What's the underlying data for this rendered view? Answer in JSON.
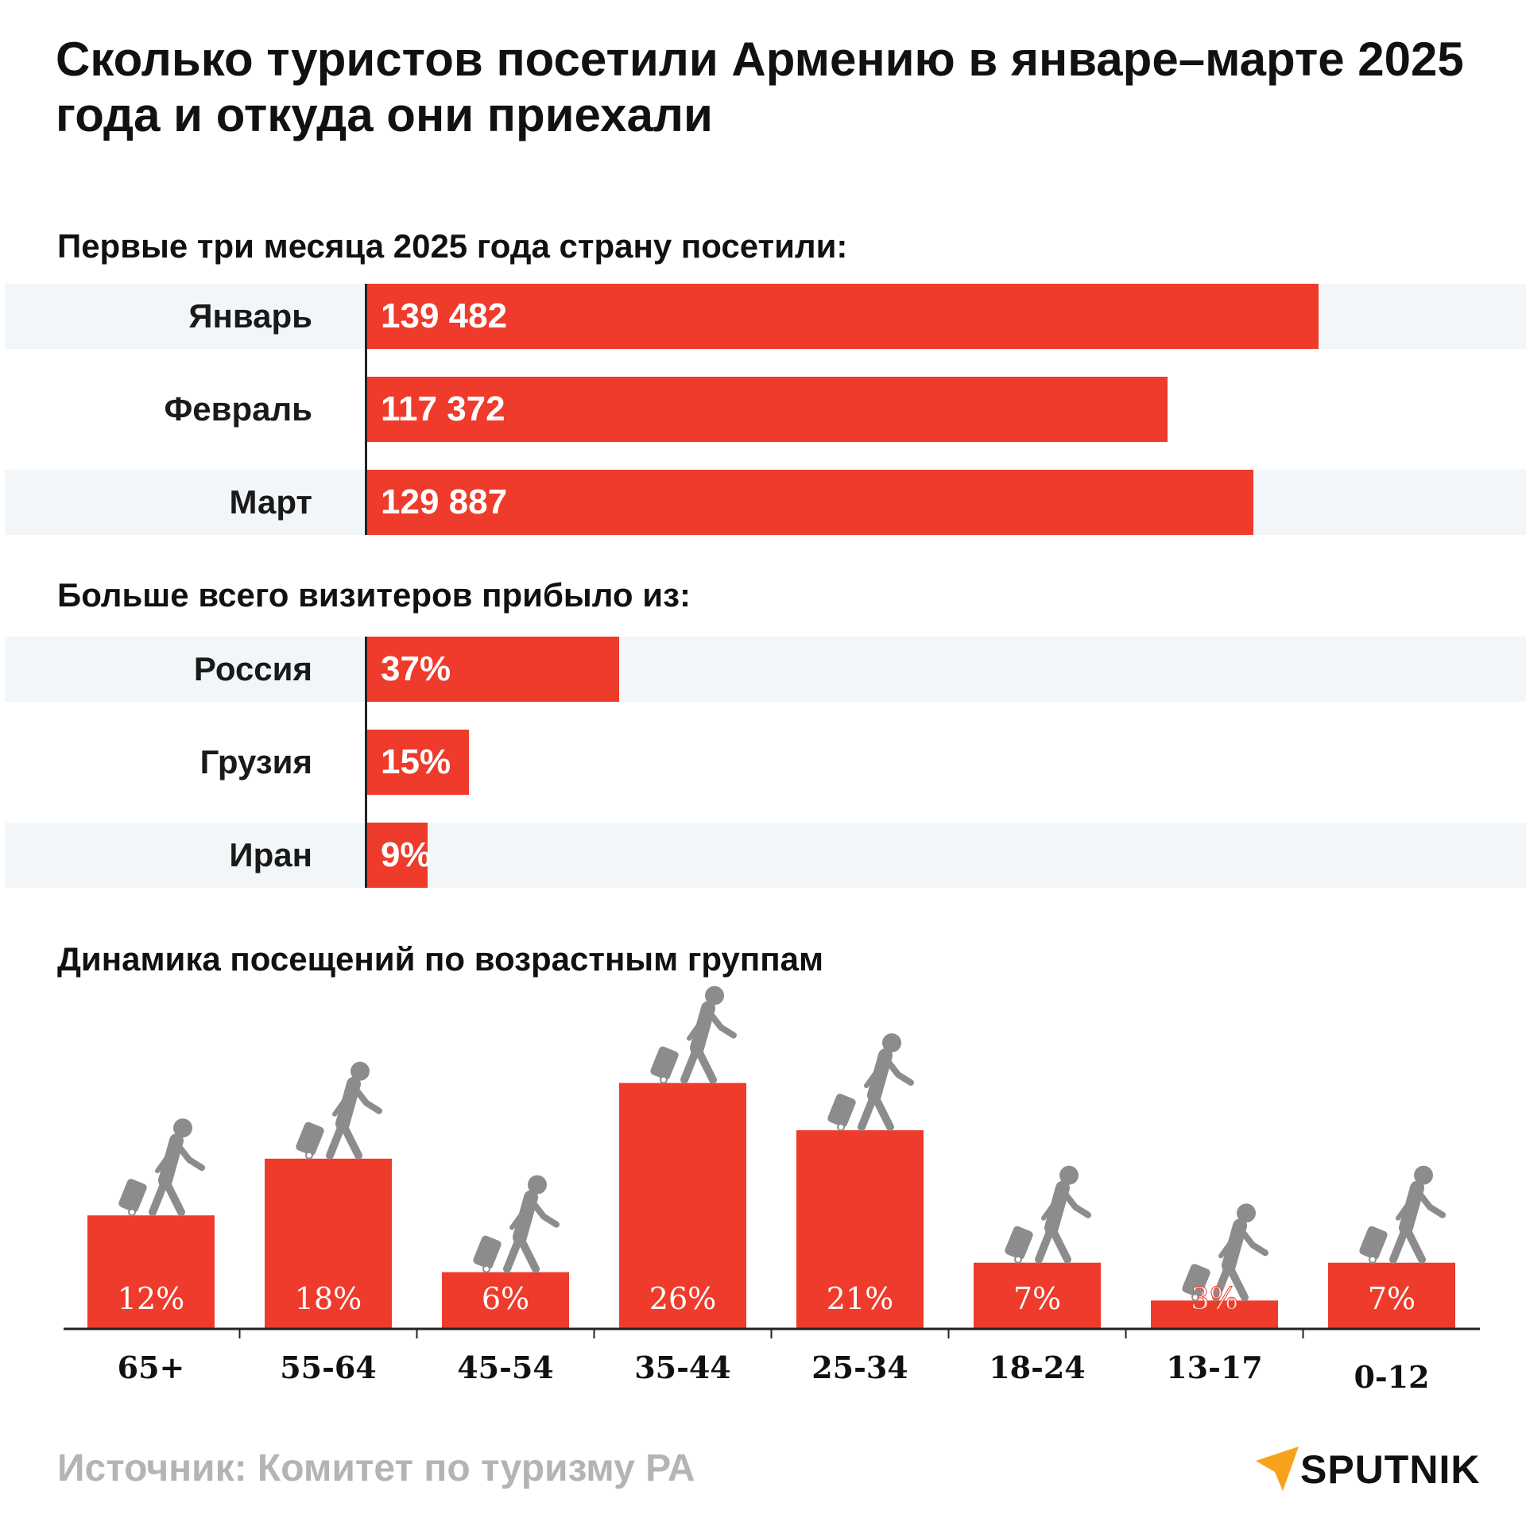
{
  "title": "Сколько туристов посетили Армению в январе–марте 2025 года и откуда они приехали",
  "footer": {
    "source": "Источник:  Комитет по туризму РА",
    "logo": "SPUTNIK"
  },
  "colors": {
    "bar": "#ef3b2b",
    "row_shade": "#f2f6f8",
    "icon": "#8c8c8c",
    "footer_text": "#b4b4b4"
  },
  "icons": {
    "traveler": "traveler-with-suitcase-icon",
    "logo": "sputnik-arrow-icon"
  },
  "chart_data": [
    {
      "type": "bar",
      "orientation": "horizontal",
      "title": "Первые три месяца 2025 года страну посетили:",
      "categories": [
        "Январь",
        "Февраль",
        "Март"
      ],
      "values": [
        139482,
        117372,
        129887
      ],
      "value_labels": [
        "139 482",
        "117 372",
        "129 887"
      ],
      "xlim": [
        0,
        170000
      ]
    },
    {
      "type": "bar",
      "orientation": "horizontal",
      "title": "Больше всего визитеров прибыло из:",
      "categories": [
        "Россия",
        "Грузия",
        "Иран"
      ],
      "values": [
        37,
        15,
        9
      ],
      "value_labels": [
        "37%",
        "15%",
        "9%"
      ],
      "xlim": [
        0,
        170
      ]
    },
    {
      "type": "bar",
      "orientation": "vertical",
      "title": "Динамика посещений по возрастным группам",
      "categories": [
        "65+",
        "55-64",
        "45-54",
        "35-44",
        "25-34",
        "18-24",
        "13-17",
        "0-12"
      ],
      "values": [
        12,
        18,
        6,
        26,
        21,
        7,
        3,
        7
      ],
      "value_labels": [
        "12%",
        "18%",
        "6%",
        "26%",
        "21%",
        "7%",
        "3%",
        "7%"
      ],
      "ylim": [
        0,
        30
      ]
    }
  ]
}
